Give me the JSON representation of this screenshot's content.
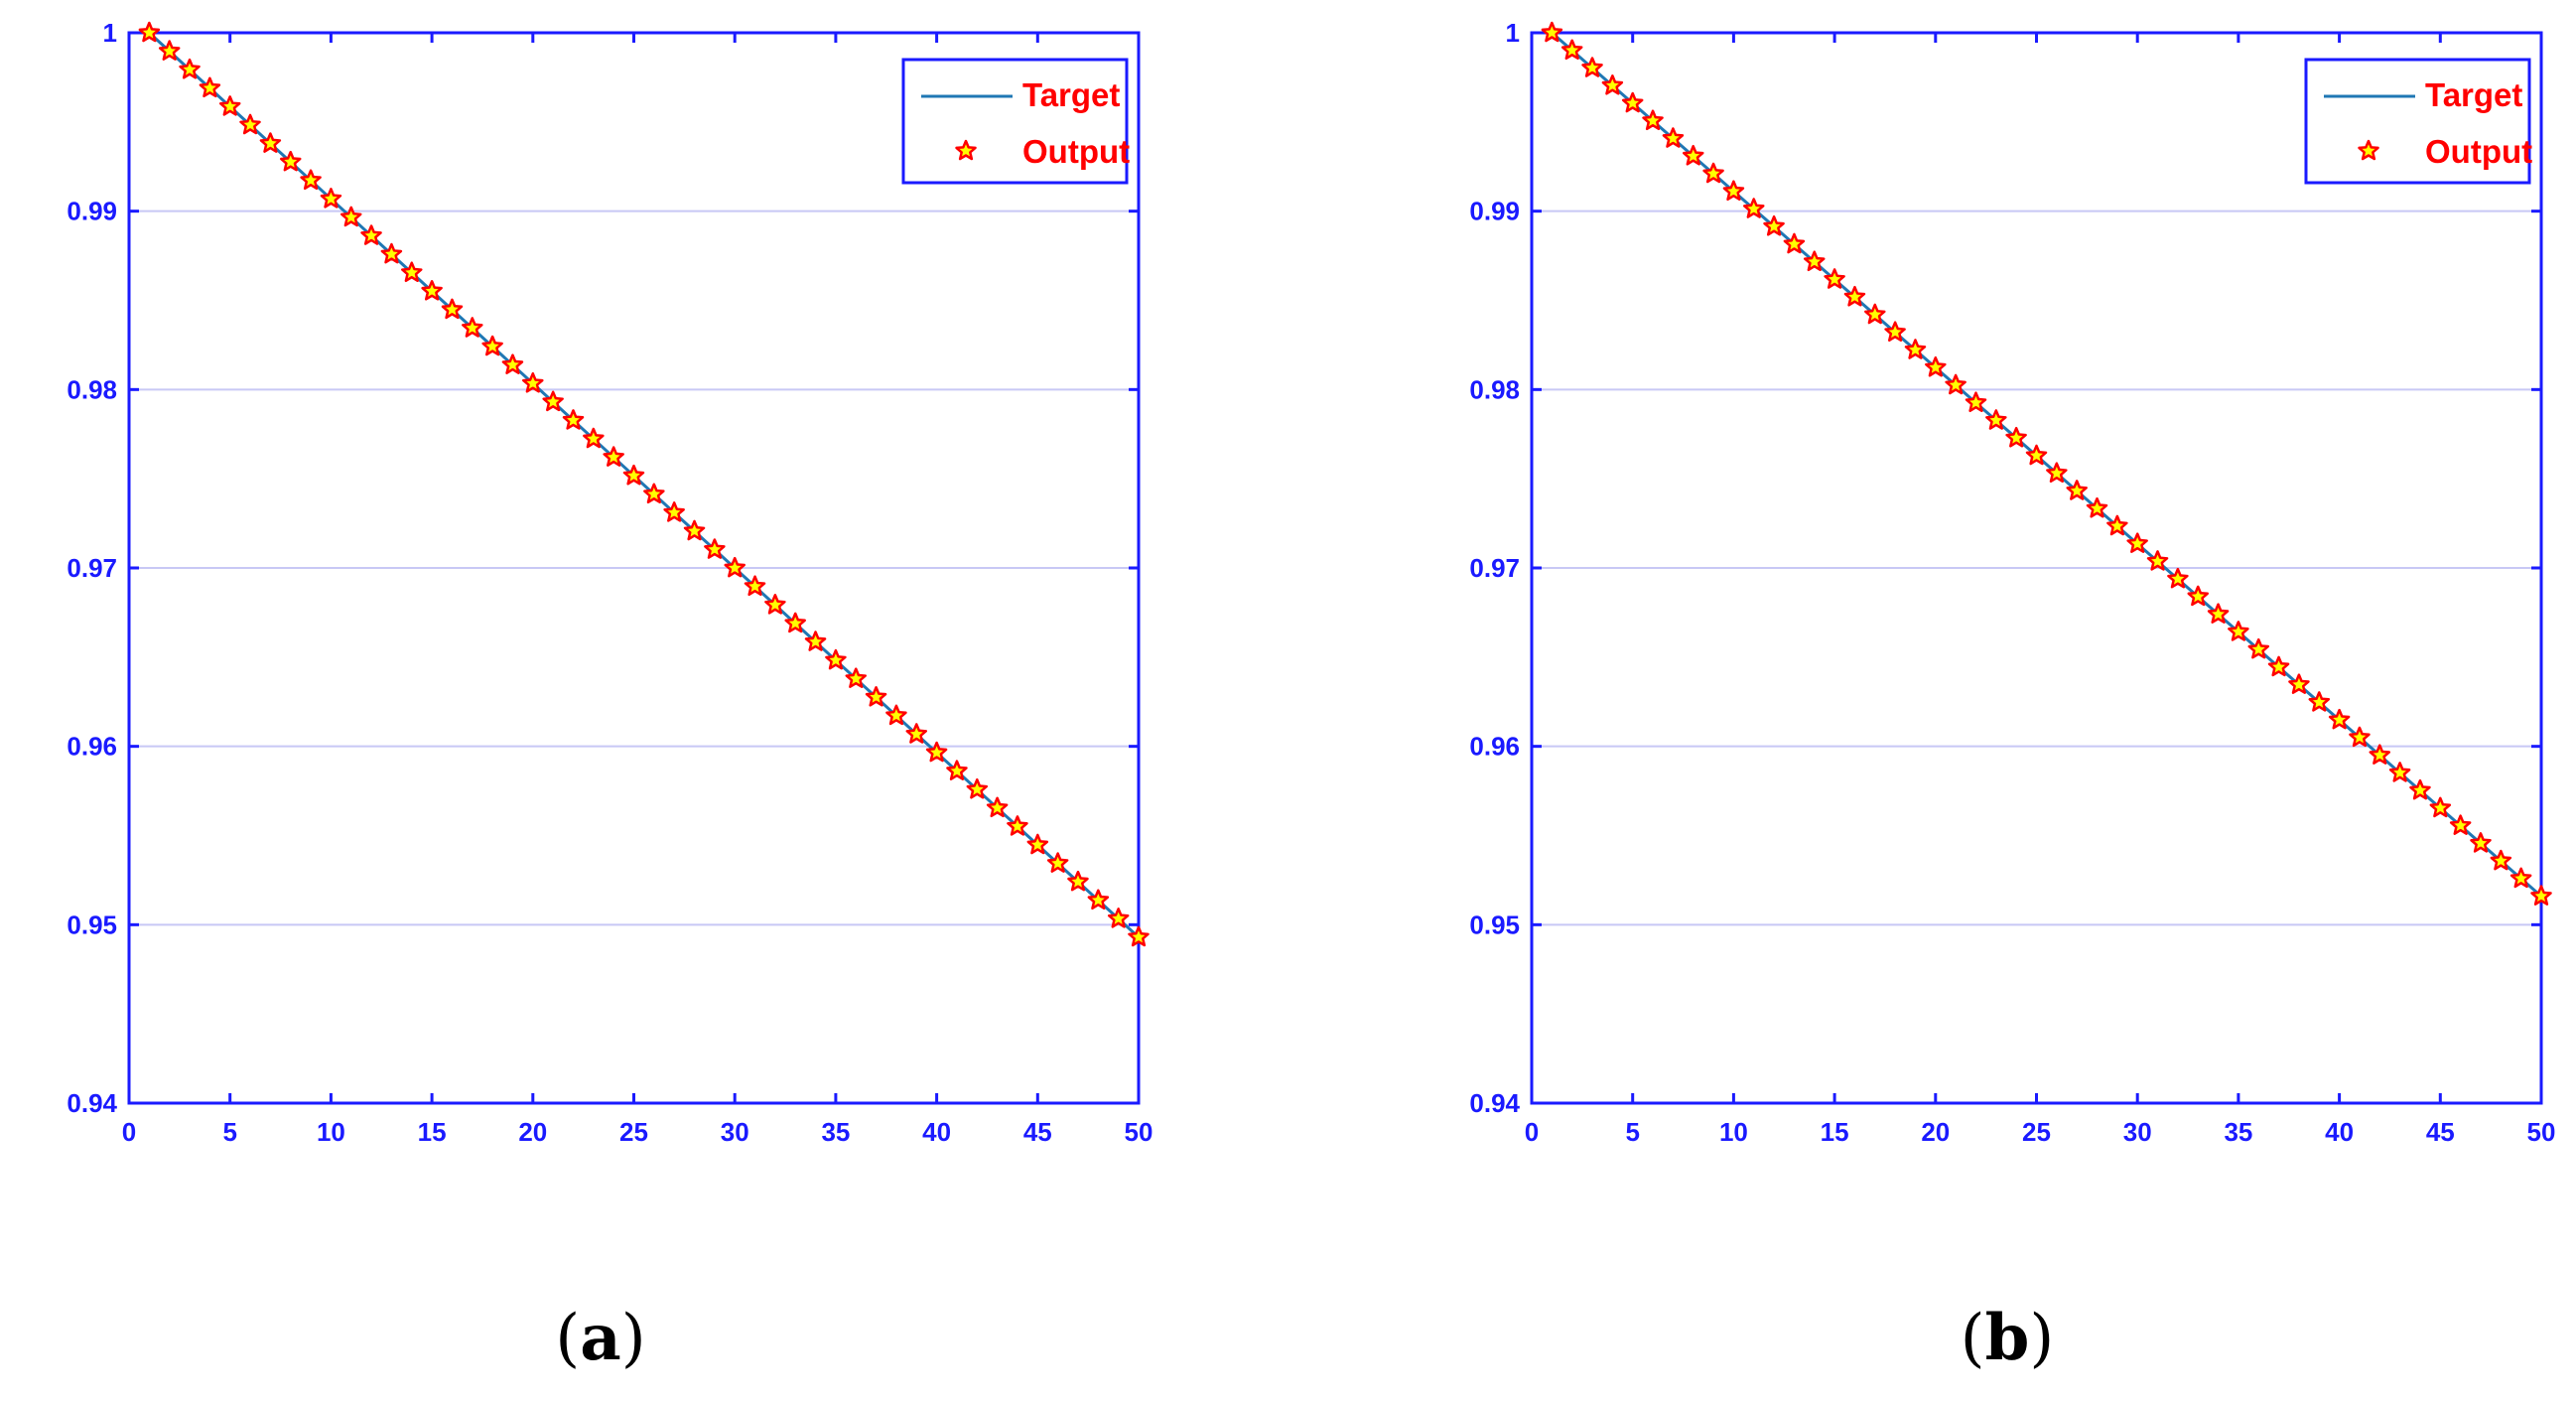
{
  "chart_data": [
    {
      "type": "line",
      "panel_label": "a",
      "x_ticks": [
        0,
        5,
        10,
        15,
        20,
        25,
        30,
        35,
        40,
        45,
        50
      ],
      "y_ticks": [
        "0.94",
        "0.95",
        "0.96",
        "0.97",
        "0.98",
        "0.99",
        "1"
      ],
      "xlim": [
        0,
        50
      ],
      "ylim": [
        0.94,
        1.0
      ],
      "grid": "horizontal",
      "legend_position": "top-right",
      "series": [
        {
          "name": "Target",
          "style": "line",
          "color": "#1f77b4",
          "from": [
            1,
            1.0
          ],
          "to": [
            50,
            0.9493
          ]
        },
        {
          "name": "Output",
          "style": "star-marker",
          "color": "#ffff00",
          "edge_color": "#ff0000",
          "x": [
            1,
            50
          ],
          "y_start": 1.0,
          "y_end": 0.9493
        }
      ]
    },
    {
      "type": "line",
      "panel_label": "b",
      "x_ticks": [
        0,
        5,
        10,
        15,
        20,
        25,
        30,
        35,
        40,
        45,
        50
      ],
      "y_ticks": [
        "0.94",
        "0.95",
        "0.96",
        "0.97",
        "0.98",
        "0.99",
        "1"
      ],
      "xlim": [
        0,
        50
      ],
      "ylim": [
        0.94,
        1.0
      ],
      "grid": "horizontal",
      "legend_position": "top-right",
      "series": [
        {
          "name": "Target",
          "style": "line",
          "color": "#1f77b4",
          "from": [
            1,
            1.0
          ],
          "to": [
            50,
            0.9516
          ]
        },
        {
          "name": "Output",
          "style": "star-marker",
          "color": "#ffff00",
          "edge_color": "#ff0000",
          "x": [
            1,
            50
          ],
          "y_start": 1.0,
          "y_end": 0.9516
        }
      ]
    }
  ],
  "axis_color": "#1a1aff",
  "grid_color": "#c8c8f5",
  "legend_text_color": "#ff0000"
}
